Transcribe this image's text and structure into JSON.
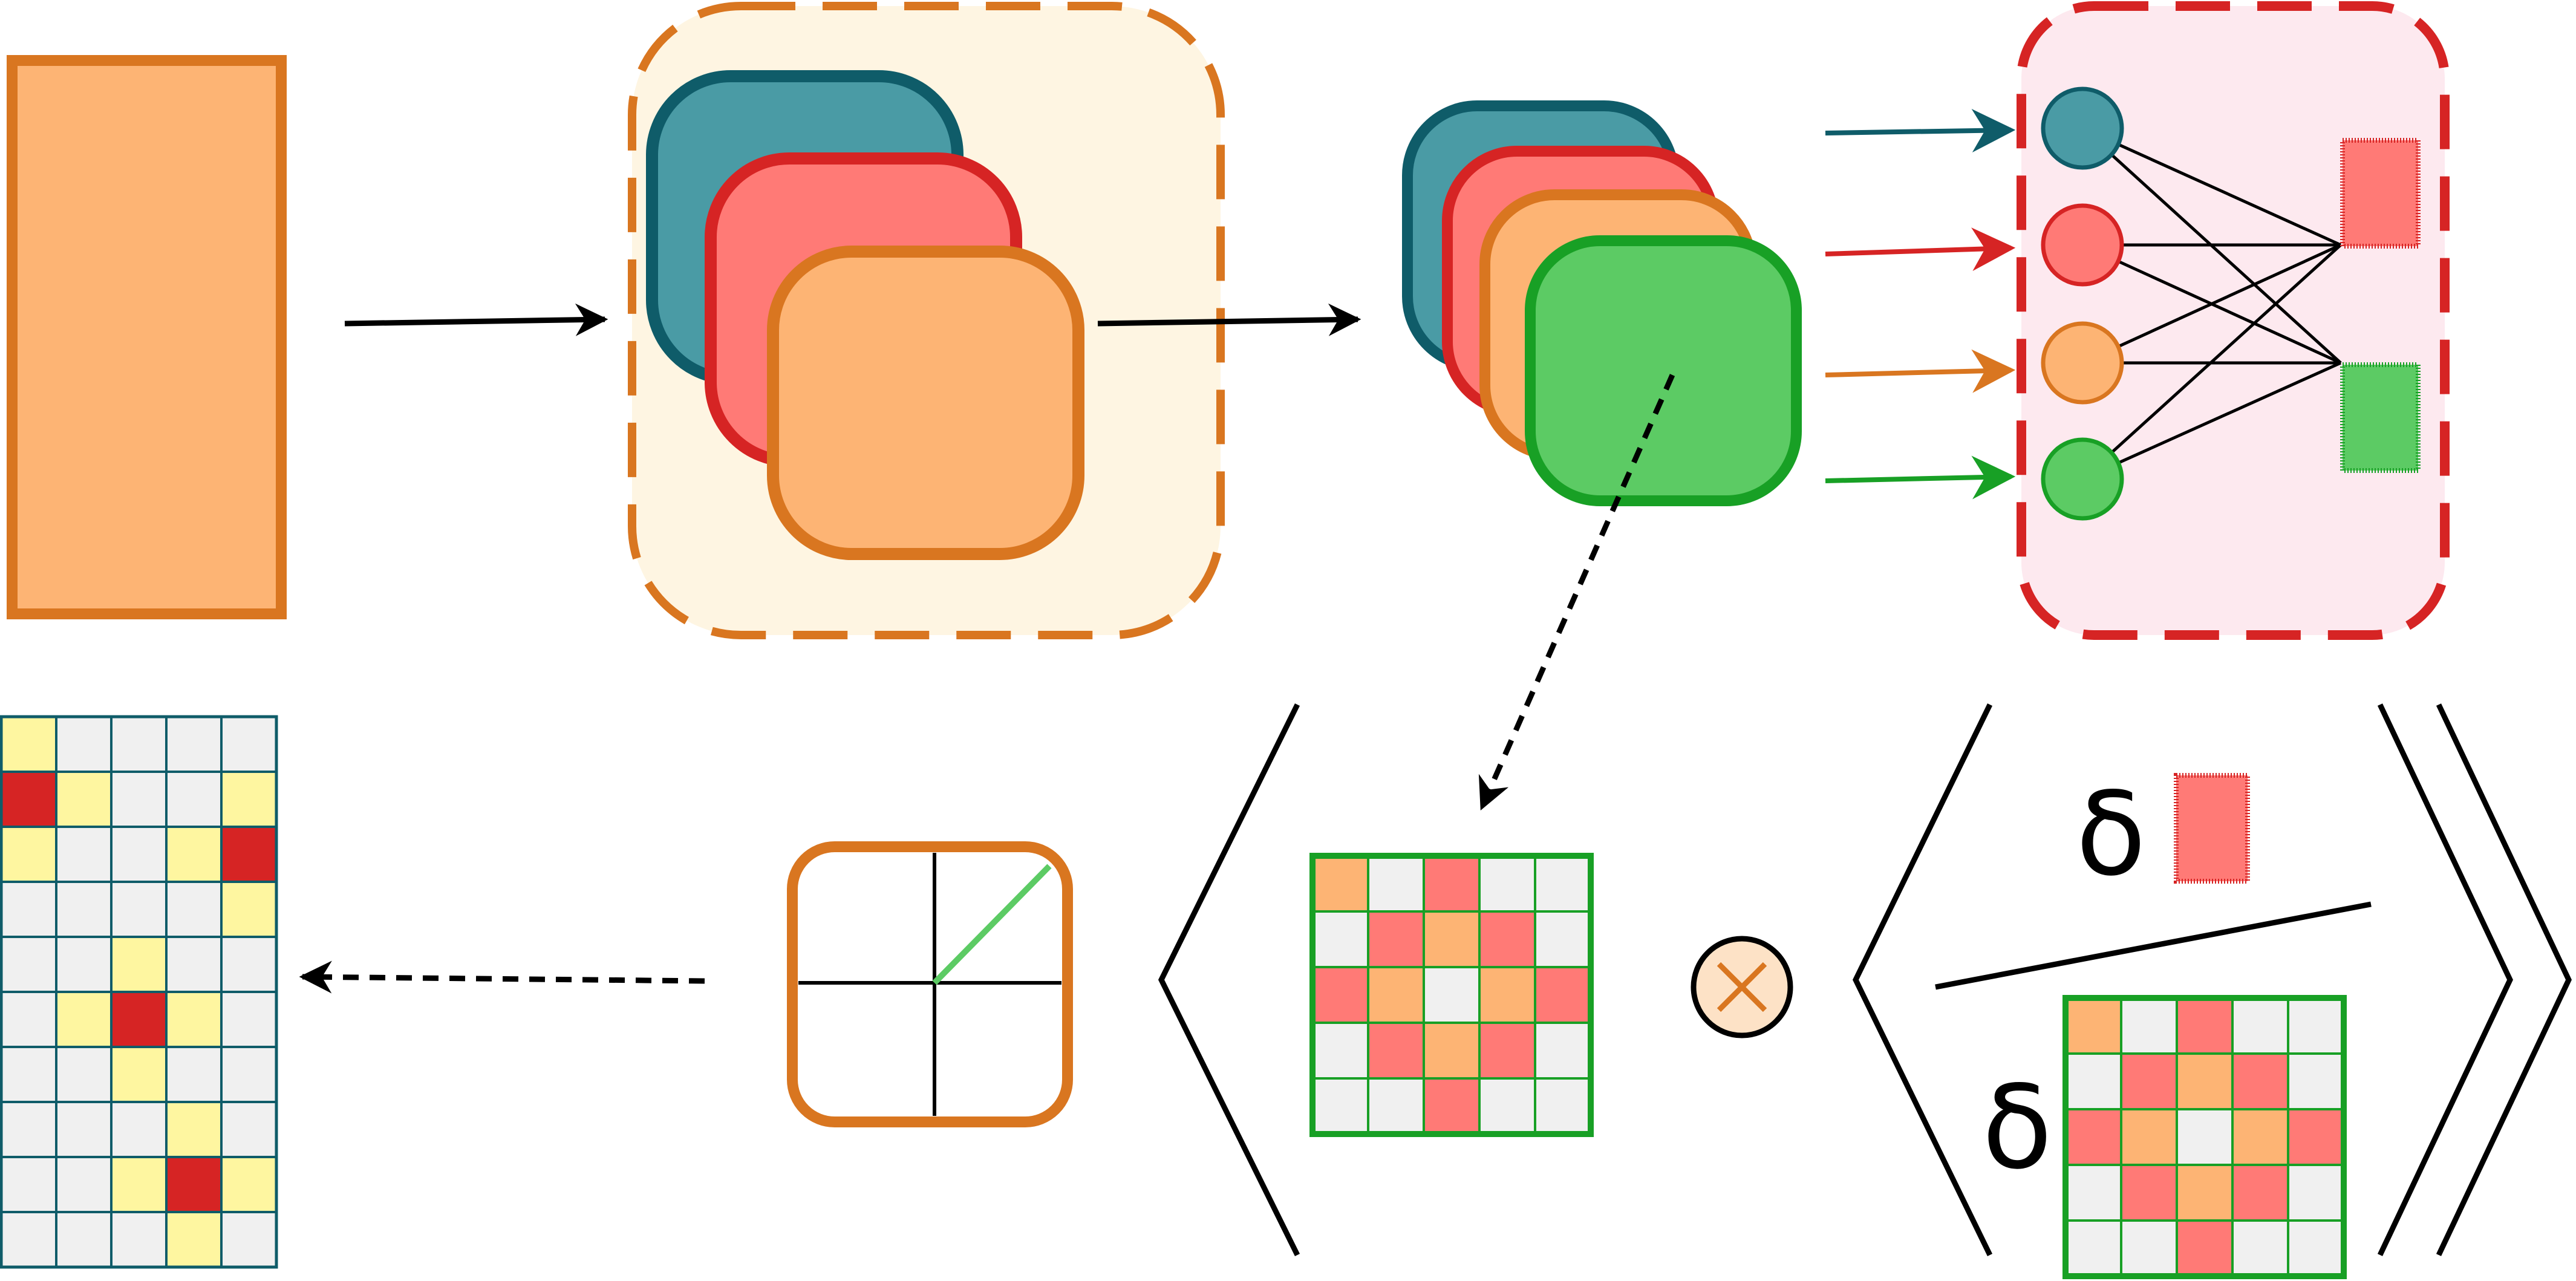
{
  "colors": {
    "teal": "#4a9ba5",
    "teal_stroke": "#0f5c69",
    "red": "#ff7a76",
    "red_stroke": "#d62424",
    "orange": "#fdb474",
    "orange_stroke": "#d97620",
    "green": "#5ccb64",
    "green_stroke": "#18a025",
    "panel_cream": "#fef5e2",
    "panel_pink": "#fde9ef",
    "cell_gray": "#f0f0f0",
    "cell_yellow": "#fef6a0",
    "cell_dark_red": "#d62424",
    "grid_line": "#0f5c69",
    "op_circle": "#fde2c6"
  },
  "symbols": {
    "delta_top": "δ",
    "delta_bottom": "δ",
    "otimes": "⊗"
  },
  "network": {
    "input_nodes": [
      "teal",
      "red",
      "orange",
      "green"
    ],
    "output_nodes": [
      "red",
      "green"
    ]
  },
  "heatmap_pattern": [
    [
      "o",
      "g",
      "r",
      "g",
      "g"
    ],
    [
      "g",
      "r",
      "o",
      "r",
      "g"
    ],
    [
      "r",
      "o",
      "g",
      "o",
      "r"
    ],
    [
      "g",
      "r",
      "o",
      "r",
      "g"
    ],
    [
      "g",
      "g",
      "r",
      "g",
      "g"
    ]
  ],
  "output_grid": [
    [
      "y",
      "g",
      "g",
      "g",
      "g"
    ],
    [
      "R",
      "y",
      "g",
      "g",
      "y"
    ],
    [
      "y",
      "g",
      "g",
      "y",
      "R"
    ],
    [
      "g",
      "g",
      "g",
      "g",
      "y"
    ],
    [
      "g",
      "g",
      "y",
      "g",
      "g"
    ],
    [
      "g",
      "y",
      "R",
      "y",
      "g"
    ],
    [
      "g",
      "g",
      "y",
      "g",
      "g"
    ],
    [
      "g",
      "g",
      "g",
      "y",
      "g"
    ],
    [
      "g",
      "g",
      "y",
      "R",
      "y"
    ],
    [
      "g",
      "g",
      "g",
      "y",
      "g"
    ]
  ]
}
